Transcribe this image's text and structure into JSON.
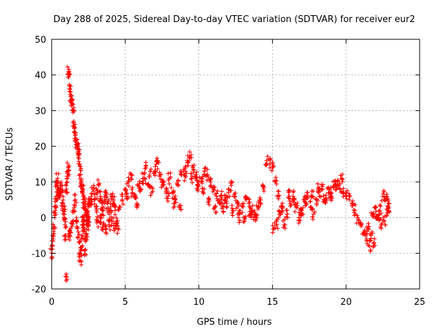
{
  "chart_data": {
    "type": "scatter",
    "title": "Day 288 of 2025, Sidereal Day-to-day VTEC variation (SDTVAR) for receiver eur2",
    "xlabel": "GPS time / hours",
    "ylabel": "SDTVAR / TECUs",
    "xlim": [
      0,
      25
    ],
    "ylim": [
      -20,
      50
    ],
    "xticks": [
      0,
      5,
      10,
      15,
      20,
      25
    ],
    "yticks": [
      -20,
      -10,
      0,
      10,
      20,
      30,
      40,
      50
    ],
    "grid": true,
    "marker": "+",
    "color": "#ff0000",
    "series": [
      {
        "name": "SDTVAR",
        "x": [
          0.0,
          0.05,
          0.1,
          0.15,
          0.2,
          0.25,
          0.3,
          0.35,
          0.4,
          0.45,
          0.5,
          0.55,
          0.6,
          0.65,
          0.7,
          0.75,
          0.8,
          0.85,
          0.9,
          0.95,
          1.0,
          0.92,
          1.05,
          1.1,
          1.12,
          1.15,
          1.2,
          1.25,
          1.3,
          1.35,
          1.4,
          1.45,
          1.5,
          1.55,
          1.6,
          1.65,
          1.7,
          1.75,
          1.8,
          1.85,
          1.9,
          1.95,
          2.0,
          2.05,
          2.1,
          2.15,
          2.2,
          2.25,
          2.3,
          2.35,
          2.4,
          2.45,
          2.5,
          1.2,
          1.3,
          1.4,
          1.5,
          1.6,
          1.7,
          1.8,
          1.85,
          1.9,
          1.95,
          2.0,
          2.05,
          2.1,
          2.15,
          2.2,
          2.25,
          2.3,
          2.35,
          2.4,
          2.45,
          2.5,
          2.55,
          2.6,
          2.7,
          2.8,
          2.9,
          3.0,
          3.1,
          3.2,
          3.3,
          3.4,
          3.5,
          3.6,
          3.7,
          3.8,
          3.9,
          4.0,
          4.1,
          4.2,
          4.3,
          4.4,
          4.5,
          3.1,
          3.3,
          3.5,
          3.7,
          3.9,
          4.1,
          4.3,
          4.6,
          4.8,
          5.0,
          5.2,
          5.4,
          5.6,
          5.8,
          6.0,
          6.2,
          6.4,
          6.6,
          6.8,
          7.0,
          7.2,
          7.4,
          7.6,
          7.8,
          8.0,
          8.2,
          8.4,
          8.6,
          8.8,
          5.1,
          5.5,
          5.9,
          6.3,
          6.7,
          7.1,
          7.5,
          7.9,
          8.3,
          8.7,
          9.0,
          9.2,
          9.4,
          9.6,
          9.8,
          10.0,
          10.2,
          10.4,
          10.6,
          10.8,
          11.0,
          11.2,
          11.4,
          11.6,
          11.8,
          12.0,
          12.2,
          12.4,
          12.6,
          12.8,
          13.0,
          13.2,
          13.4,
          13.6,
          13.8,
          14.0,
          9.1,
          9.5,
          9.9,
          10.3,
          10.7,
          11.1,
          11.5,
          11.9,
          12.3,
          12.7,
          13.1,
          13.5,
          13.9,
          14.2,
          14.4,
          14.6,
          14.8,
          15.0,
          15.2,
          15.4,
          15.6,
          15.8,
          16.0,
          16.2,
          16.4,
          16.6,
          16.8,
          17.0,
          17.2,
          17.4,
          17.6,
          17.8,
          18.0,
          18.2,
          18.4,
          18.6,
          18.8,
          19.0,
          19.2,
          19.4,
          19.6,
          19.8,
          20.0,
          15.1,
          15.3,
          15.5,
          15.7,
          16.1,
          16.5,
          16.9,
          17.3,
          17.7,
          18.1,
          18.5,
          18.9,
          19.3,
          19.7,
          20.2,
          20.4,
          20.6,
          20.8,
          21.0,
          21.2,
          21.4,
          21.6,
          21.8,
          22.0,
          22.2,
          22.4,
          22.6,
          22.8,
          22.9,
          21.5,
          21.7,
          21.9,
          22.1,
          22.3,
          22.5,
          22.7,
          22.85
        ],
        "y": [
          -10,
          -8,
          -6,
          -3,
          0,
          3,
          6,
          9,
          11,
          8,
          6,
          7,
          8,
          9,
          7,
          4,
          2,
          1,
          -2,
          -16.5,
          8,
          -5,
          10,
          13,
          14,
          41,
          40,
          36,
          34,
          33,
          32,
          30,
          27,
          25,
          23,
          22,
          21,
          20,
          19,
          18,
          15,
          12,
          10,
          9,
          8,
          6,
          4,
          3,
          2,
          1,
          0,
          -1,
          -2,
          -5,
          -3,
          -1,
          2,
          5,
          -1,
          -4,
          -7,
          -10,
          -12,
          -9,
          -5,
          -2,
          0,
          -3,
          -6,
          -9,
          -5,
          -2,
          1,
          3,
          5,
          4,
          6,
          8,
          5,
          3,
          7,
          9,
          6,
          4,
          2,
          5,
          7,
          4,
          1,
          3,
          6,
          5,
          2,
          -1,
          -3,
          -1,
          0,
          -2,
          -3,
          -2,
          -1,
          -3,
          3,
          5,
          8,
          10,
          12,
          6,
          4,
          8,
          11,
          14,
          9,
          7,
          13,
          16,
          12,
          10,
          8,
          11,
          7,
          5,
          9,
          12,
          6,
          7,
          9,
          11,
          13,
          15,
          10,
          6,
          4,
          3,
          12,
          16,
          17,
          14,
          12,
          10,
          11,
          13,
          12,
          10,
          8,
          6,
          4,
          3,
          5,
          7,
          9,
          6,
          4,
          2,
          3,
          5,
          4,
          2,
          1,
          3,
          13,
          11,
          9,
          7,
          5,
          3,
          6,
          4,
          2,
          0,
          -1,
          1,
          0,
          5,
          8,
          16,
          15,
          14,
          10,
          6,
          3,
          -2,
          1,
          4,
          6,
          3,
          0,
          2,
          5,
          7,
          3,
          1,
          4,
          6,
          8,
          5,
          7,
          6,
          9,
          10,
          8,
          7,
          6,
          -3,
          -2,
          1,
          3,
          7,
          5,
          2,
          4,
          6,
          8,
          5,
          7,
          9,
          11,
          6,
          4,
          2,
          0,
          -2,
          -4,
          -6,
          -8,
          1,
          3,
          0,
          -2,
          -1,
          2,
          4,
          -3,
          -5,
          -7,
          0,
          2,
          6,
          5,
          3
        ],
        "notes": "Dense scatter of '+' markers; values read off the axes (approximate). Densification is rendering-only."
      }
    ]
  }
}
